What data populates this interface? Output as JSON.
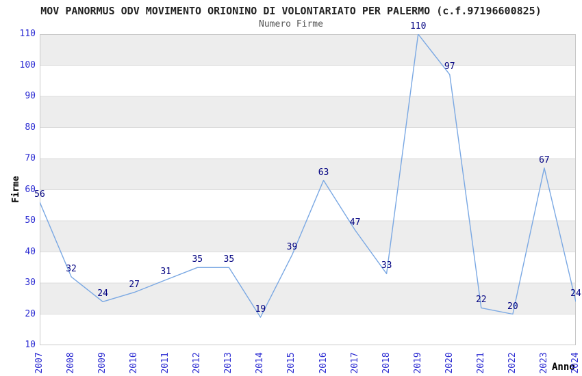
{
  "chart_data": {
    "type": "line",
    "title": "MOV PANORMUS ODV MOVIMENTO ORIONINO DI VOLONTARIATO PER PALERMO (c.f.97196600825)",
    "subtitle": "Numero Firme",
    "xlabel": "Anno",
    "ylabel": "Firme",
    "categories": [
      "2007",
      "2008",
      "2009",
      "2010",
      "2011",
      "2012",
      "2013",
      "2014",
      "2015",
      "2016",
      "2017",
      "2018",
      "2019",
      "2020",
      "2021",
      "2022",
      "2023",
      "2024"
    ],
    "values": [
      56,
      32,
      24,
      27,
      31,
      35,
      35,
      19,
      39,
      63,
      47,
      33,
      110,
      97,
      22,
      20,
      67,
      24
    ],
    "yticks": [
      110,
      100,
      90,
      80,
      70,
      60,
      50,
      40,
      30,
      20,
      10
    ],
    "ylim": [
      10,
      110
    ],
    "grid": true,
    "band_fill": "alternating-horizontal",
    "legend": "none",
    "data_labels": true
  },
  "colors": {
    "line": "#7aa8e3",
    "tick_label": "#2a2ad2",
    "data_label": "#000080",
    "band_gray": "#ededed",
    "band_white": "#ffffff",
    "grid_line": "#dcdcdc",
    "plot_border": "#c8c8c8",
    "title": "#222222",
    "subtitle": "#555555",
    "axis_title": "#000000",
    "background": "#ffffff"
  }
}
